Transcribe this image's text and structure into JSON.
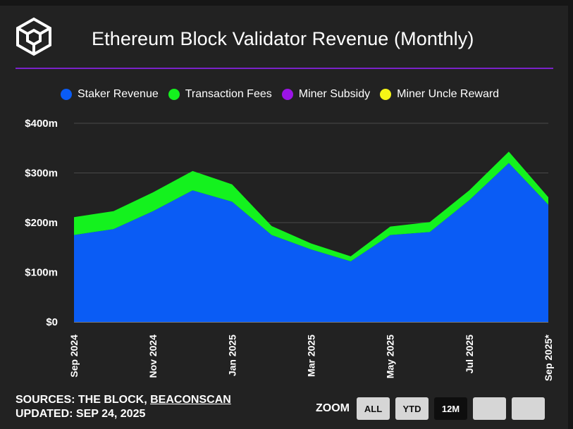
{
  "header": {
    "title": "Ethereum Block Validator Revenue (Monthly)"
  },
  "legend": [
    {
      "label": "Staker Revenue",
      "color": "#0a5cf5"
    },
    {
      "label": "Transaction Fees",
      "color": "#14f21e"
    },
    {
      "label": "Miner Subsidy",
      "color": "#9b14e6"
    },
    {
      "label": "Miner Uncle Reward",
      "color": "#f5f516"
    }
  ],
  "chart_data": {
    "type": "area",
    "stacked": true,
    "title": "Ethereum Block Validator Revenue (Monthly)",
    "x": [
      "Sep 2024",
      "Oct 2024",
      "Nov 2024",
      "Dec 2024",
      "Jan 2025",
      "Feb 2025",
      "Mar 2025",
      "Apr 2025",
      "May 2025",
      "Jun 2025",
      "Jul 2025",
      "Aug 2025",
      "Sep 2025*"
    ],
    "x_tick_labels": [
      "Sep 2024",
      "Nov 2024",
      "Jan 2025",
      "Mar 2025",
      "May 2025",
      "Jul 2025",
      "Sep 2025*"
    ],
    "y_tick_labels": [
      "$0",
      "$100m",
      "$200m",
      "$300m",
      "$400m"
    ],
    "y_ticks": [
      0,
      100,
      200,
      300,
      400
    ],
    "ylim": [
      0,
      400
    ],
    "units": "USD millions",
    "series": [
      {
        "name": "Staker Revenue",
        "color": "#0a5cf5",
        "values": [
          175,
          187,
          223,
          265,
          242,
          175,
          146,
          122,
          175,
          181,
          245,
          320,
          236
        ]
      },
      {
        "name": "Transaction Fees",
        "color": "#14f21e",
        "values": [
          36,
          36,
          38,
          39,
          35,
          18,
          12,
          10,
          17,
          20,
          20,
          23,
          15
        ]
      },
      {
        "name": "Miner Subsidy",
        "color": "#9b14e6",
        "values": [
          0,
          0,
          0,
          0,
          0,
          0,
          0,
          0,
          0,
          0,
          0,
          0,
          0
        ]
      },
      {
        "name": "Miner Uncle Reward",
        "color": "#f5f516",
        "values": [
          0,
          0,
          0,
          0,
          0,
          0,
          0,
          0,
          0,
          0,
          0,
          0,
          0
        ]
      }
    ],
    "grid": true,
    "legend_position": "top"
  },
  "footer": {
    "sources_prefix": "SOURCES: THE BLOCK, ",
    "sources_link": "BEACONSCAN",
    "updated": "UPDATED: SEP 24, 2025"
  },
  "zoom": {
    "label": "ZOOM",
    "buttons": [
      {
        "label": "ALL",
        "active": false
      },
      {
        "label": "YTD",
        "active": false
      },
      {
        "label": "12M",
        "active": true
      },
      {
        "label": "",
        "active": false
      },
      {
        "label": "",
        "active": false
      }
    ]
  }
}
